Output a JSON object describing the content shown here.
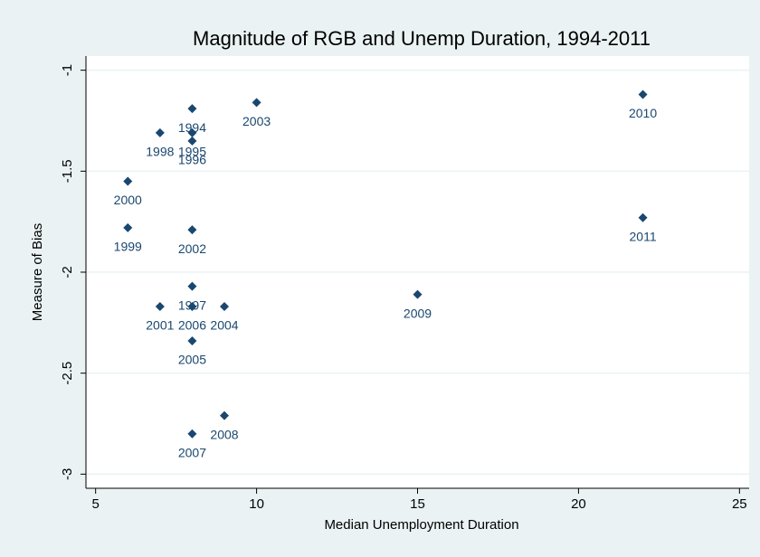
{
  "chart_data": {
    "type": "scatter",
    "title": "Magnitude of RGB and Unemp Duration, 1994-2011",
    "x_label": "Median Unemployment Duration",
    "y_label": "Measure of Bias",
    "x": [
      8,
      10,
      22,
      7,
      8,
      8,
      6,
      6,
      8,
      22,
      8,
      7,
      8,
      9,
      15,
      8,
      9,
      8
    ],
    "values": [
      -1.19,
      -1.16,
      -1.12,
      -1.31,
      -1.31,
      -1.35,
      -1.55,
      -1.78,
      -1.79,
      -1.73,
      -2.07,
      -2.17,
      -2.17,
      -2.17,
      -2.11,
      -2.34,
      -2.71,
      -2.8
    ],
    "labels": [
      "1994",
      "2003",
      "2010",
      "1998",
      "1995",
      "1996",
      "2000",
      "1999",
      "2002",
      "2011",
      "1997",
      "2001",
      "2006",
      "2004",
      "2009",
      "2005",
      "2008",
      "2007"
    ],
    "color": "#1a476f",
    "xlim": [
      4.7,
      25.3
    ],
    "xticks": [
      5,
      10,
      15,
      20,
      25
    ],
    "ylim": [
      -3.07,
      -0.93
    ],
    "yticks": [
      -1,
      -1.5,
      -2,
      -2.5,
      -3
    ],
    "grid": true
  }
}
